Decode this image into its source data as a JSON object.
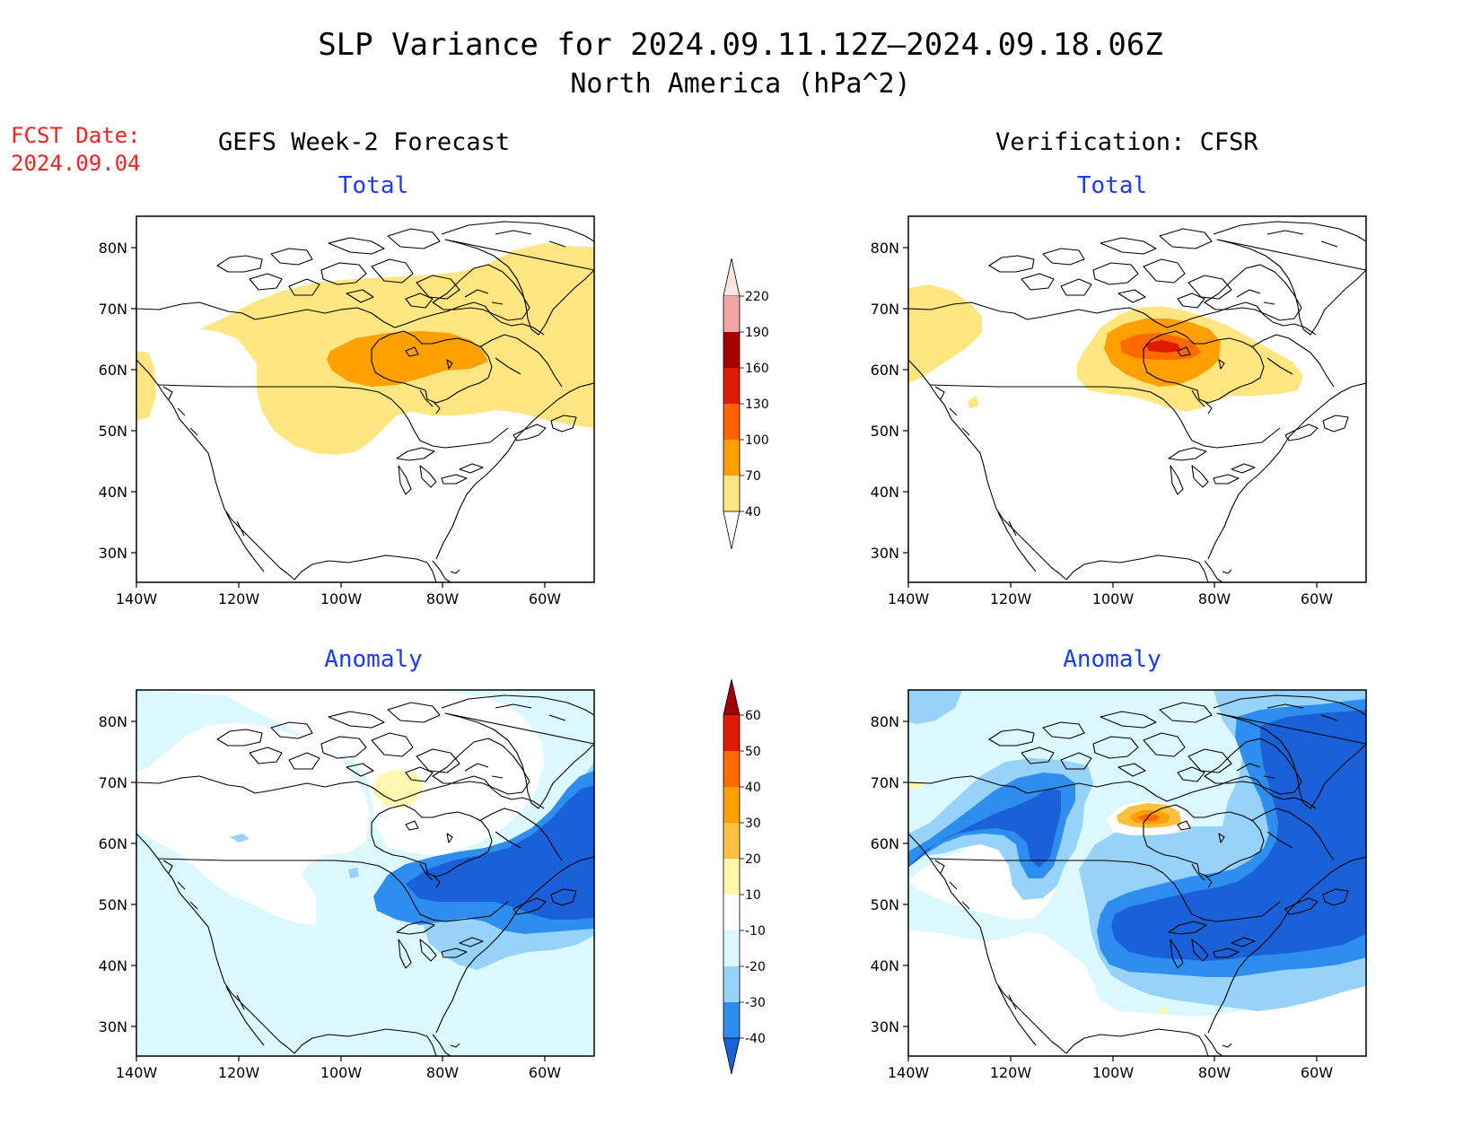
{
  "header": {
    "title": "SLP Variance for 2024.09.11.12Z–2024.09.18.06Z",
    "subtitle": "North America (hPa^2)",
    "fcst_label": "FCST Date:",
    "fcst_date": "2024.09.04"
  },
  "columns": {
    "left": "GEFS Week-2 Forecast",
    "right": "Verification: CFSR"
  },
  "panels": {
    "forecast_total": "Total",
    "forecast_anomaly": "Anomaly",
    "verification_total": "Total",
    "verification_anomaly": "Anomaly"
  },
  "axes": {
    "lat_ticks": [
      "80N",
      "70N",
      "60N",
      "50N",
      "40N",
      "30N"
    ],
    "lon_ticks": [
      "140W",
      "120W",
      "100W",
      "80W",
      "60W"
    ]
  },
  "colorbars": {
    "total": {
      "levels": [
        "40",
        "70",
        "100",
        "130",
        "160",
        "190",
        "220"
      ],
      "colors": [
        "#ffe680",
        "#ff9f00",
        "#ff6200",
        "#e01a00",
        "#a50000",
        "#f4a4a4",
        "#ffe4e4"
      ]
    },
    "anomaly": {
      "levels": [
        "-40",
        "-30",
        "-20",
        "-10",
        "10",
        "20",
        "30",
        "40",
        "50",
        "60"
      ],
      "colors": [
        "#1a60d8",
        "#2e8ef0",
        "#96d2fa",
        "#dcf8ff",
        "#ffffff",
        "#fff8a8",
        "#ffc040",
        "#ffa000",
        "#ff6a00",
        "#e01a00",
        "#a00000"
      ]
    }
  },
  "palette": {
    "yellow": "#ffe680",
    "orange": "#ff9f00",
    "dark_orange": "#ff6a00",
    "red": "#e01a00",
    "pale_yellow": "#fff8b0",
    "lightest_blue": "#dcf8ff",
    "light_blue": "#96d2fa",
    "medium_blue": "#2e8ef0",
    "dark_blue": "#1a60d8"
  }
}
